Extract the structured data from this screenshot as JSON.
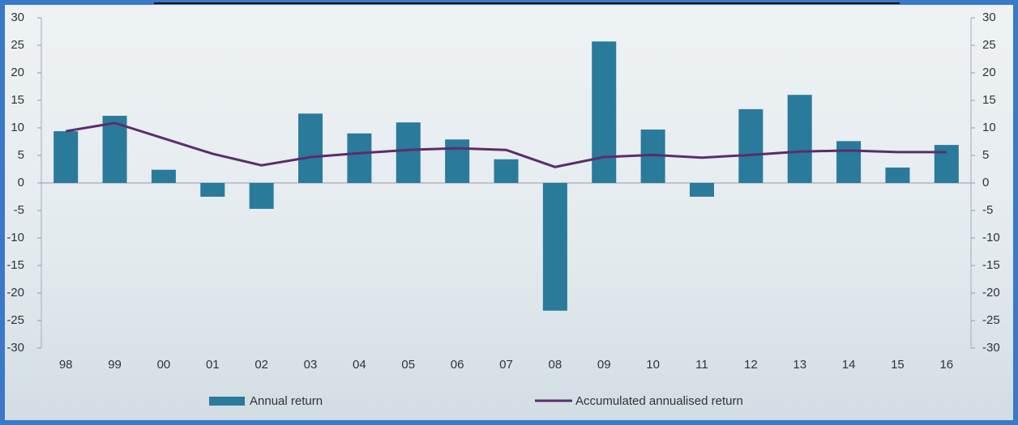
{
  "chart_data": {
    "type": "bar",
    "categories": [
      "98",
      "99",
      "00",
      "01",
      "02",
      "03",
      "04",
      "05",
      "06",
      "07",
      "08",
      "09",
      "10",
      "11",
      "12",
      "13",
      "14",
      "15",
      "16"
    ],
    "series": [
      {
        "name": "Annual return",
        "type": "bar",
        "color": "#2a7a9b",
        "values": [
          9.4,
          12.2,
          2.4,
          -2.5,
          -4.7,
          12.6,
          9.0,
          11.0,
          7.9,
          4.3,
          -23.2,
          25.7,
          9.7,
          -2.5,
          13.4,
          16.0,
          7.6,
          2.8,
          6.9
        ]
      },
      {
        "name": "Accumulated annualised return",
        "type": "line",
        "color": "#5b2d6b",
        "axis": "y2",
        "values": [
          9.4,
          10.9,
          8.1,
          5.3,
          3.2,
          4.7,
          5.4,
          6.0,
          6.3,
          6.0,
          2.9,
          4.7,
          5.1,
          4.6,
          5.1,
          5.7,
          5.9,
          5.6,
          5.6
        ]
      }
    ],
    "ylim": [
      -30,
      30
    ],
    "yticks": [
      -30,
      -25,
      -20,
      -15,
      -10,
      -5,
      0,
      5,
      10,
      15,
      20,
      25,
      30
    ],
    "y2lim": [
      -30,
      30
    ],
    "y2ticks": [
      -30,
      -25,
      -20,
      -15,
      -10,
      -5,
      0,
      5,
      10,
      15,
      20,
      25,
      30
    ],
    "legend": "bottom"
  }
}
